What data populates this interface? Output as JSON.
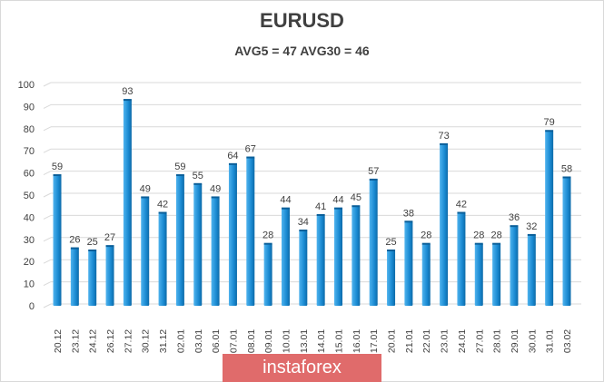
{
  "chart_data": {
    "type": "bar",
    "title": "EURUSD",
    "subtitle": "AVG5 = 47 AVG30 = 46",
    "xlabel": "",
    "ylabel": "",
    "ylim": [
      0,
      100
    ],
    "yticks": [
      0,
      10,
      20,
      30,
      40,
      50,
      60,
      70,
      80,
      90,
      100
    ],
    "grid": true,
    "categories": [
      "20.12",
      "23.12",
      "24.12",
      "26.12",
      "27.12",
      "30.12",
      "31.12",
      "02.01",
      "03.01",
      "06.01",
      "07.01",
      "08.01",
      "09.01",
      "10.01",
      "13.01",
      "14.01",
      "15.01",
      "16.01",
      "17.01",
      "20.01",
      "21.01",
      "22.01",
      "23.01",
      "24.01",
      "27.01",
      "28.01",
      "29.01",
      "30.01",
      "31.01",
      "03.02"
    ],
    "values": [
      59,
      26,
      25,
      27,
      93,
      49,
      42,
      59,
      55,
      49,
      64,
      67,
      28,
      44,
      34,
      41,
      44,
      45,
      57,
      25,
      38,
      28,
      73,
      42,
      28,
      28,
      36,
      32,
      79,
      58
    ],
    "bar_color": "#1f8fd6"
  },
  "logo_text": "instaforex"
}
